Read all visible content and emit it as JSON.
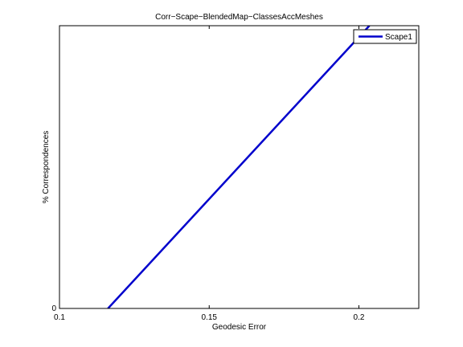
{
  "chart_data": {
    "type": "line",
    "title": "Corr−Scape−BlendedMap−ClassesAccMeshes",
    "xlabel": "Geodesic Error",
    "ylabel": "% Correspondences",
    "xlim": [
      0.1,
      0.22
    ],
    "ylim": [
      0,
      1
    ],
    "xticks": [
      0.1,
      0.15,
      0.2
    ],
    "xtick_labels": [
      "0.1",
      "0.15",
      "0.2"
    ],
    "yticks": [
      0
    ],
    "ytick_labels": [
      "0"
    ],
    "grid": false,
    "legend_position": "top-right",
    "series": [
      {
        "name": "Scape1",
        "color": "#0000cc",
        "x": [
          0.1162,
          0.2035
        ],
        "y": [
          0.0,
          1.0
        ]
      }
    ]
  }
}
